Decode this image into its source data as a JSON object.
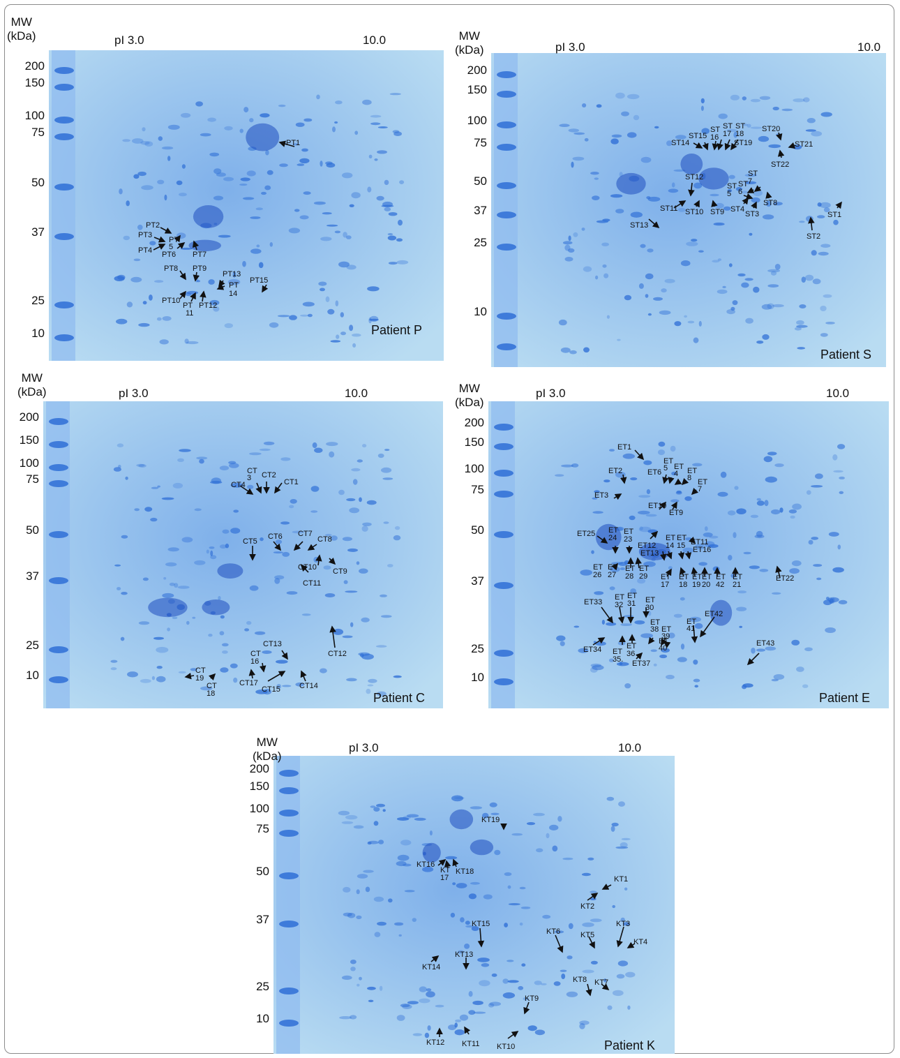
{
  "figure": {
    "mw_axis_label_line1": "MW",
    "mw_axis_label_line2": "(kDa)",
    "pi_left_label": "pI 3.0",
    "pi_right_label": "10.0",
    "stain_color": "#2f6fd6",
    "gel_background_color": "#b9dcf2"
  },
  "panels": [
    {
      "id": "P",
      "patient_label": "Patient P",
      "mw_ticks": [
        "200",
        "150",
        "100",
        "75",
        "50",
        "37",
        "25",
        "10"
      ],
      "spot_labels": [
        "PT1",
        "PT2",
        "PT3",
        "PT4",
        "PT",
        "5",
        "PT6",
        "PT7",
        "PT8",
        "PT9",
        "PT10",
        "PT",
        "11",
        "PT12",
        "PT13",
        "PT",
        "14",
        "PT15"
      ]
    },
    {
      "id": "S",
      "patient_label": "Patient S",
      "mw_ticks": [
        "200",
        "150",
        "100",
        "75",
        "50",
        "37",
        "25",
        "10"
      ],
      "spot_labels": [
        "ST20",
        "ST21",
        "ST22",
        "ST14",
        "ST15",
        "ST",
        "16",
        "ST",
        "17",
        "ST",
        "18",
        "ST19",
        "ST12",
        "ST",
        "7",
        "ST",
        "6",
        "ST",
        "5",
        "ST8",
        "ST4",
        "ST3",
        "ST11",
        "ST10",
        "ST9",
        "ST13",
        "ST1",
        "ST2"
      ]
    },
    {
      "id": "C",
      "patient_label": "Patient C",
      "mw_ticks": [
        "200",
        "150",
        "100",
        "75",
        "50",
        "37",
        "25",
        "10"
      ],
      "spot_labels": [
        "CT",
        "3",
        "CT2",
        "CT4",
        "CT1",
        "CT5",
        "CT6",
        "CT7",
        "CT8",
        "CT10",
        "CT9",
        "CT11",
        "CT13",
        "CT12",
        "CT",
        "16",
        "CT",
        "19",
        "CT",
        "18",
        "CT17",
        "CT15",
        "CT14"
      ]
    },
    {
      "id": "E",
      "patient_label": "Patient E",
      "mw_ticks": [
        "200",
        "150",
        "100",
        "75",
        "50",
        "37",
        "25",
        "10"
      ],
      "spot_labels": [
        "ET1",
        "ET2",
        "ET6",
        "ET",
        "5",
        "ET",
        "4",
        "ET",
        "8",
        "ET",
        "7",
        "ET3",
        "ET10",
        "ET9",
        "ET25",
        "ET",
        "24",
        "ET",
        "23",
        "ET12",
        "ET",
        "14",
        "ET",
        "15",
        "ET11",
        "ET13",
        "ET16",
        "ET",
        "26",
        "ET",
        "27",
        "ET",
        "28",
        "ET",
        "29",
        "ET",
        "17",
        "ET",
        "18",
        "ET",
        "19",
        "ET",
        "20",
        "ET",
        "42",
        "ET",
        "21",
        "ET22",
        "ET33",
        "ET",
        "32",
        "ET",
        "31",
        "ET",
        "30",
        "ET",
        "38",
        "ET",
        "39",
        "ET",
        "41",
        "ET42",
        "ET34",
        "ET",
        "35.",
        "ET",
        "36",
        "ET37",
        "ET",
        "40",
        "ET43"
      ]
    },
    {
      "id": "K",
      "patient_label": "Patient K",
      "mw_ticks": [
        "200",
        "150",
        "100",
        "75",
        "50",
        "37",
        "25",
        "10"
      ],
      "spot_labels": [
        "KT19",
        "KT16",
        "KT",
        "17",
        "KT18",
        "KT1",
        "KT2",
        "KT15",
        "KT6",
        "KT5",
        "KT3",
        "KT4",
        "KT14",
        "KT13",
        "KT8",
        "KT7",
        "KT9",
        "KT12",
        "KT11",
        "KT10"
      ]
    }
  ]
}
